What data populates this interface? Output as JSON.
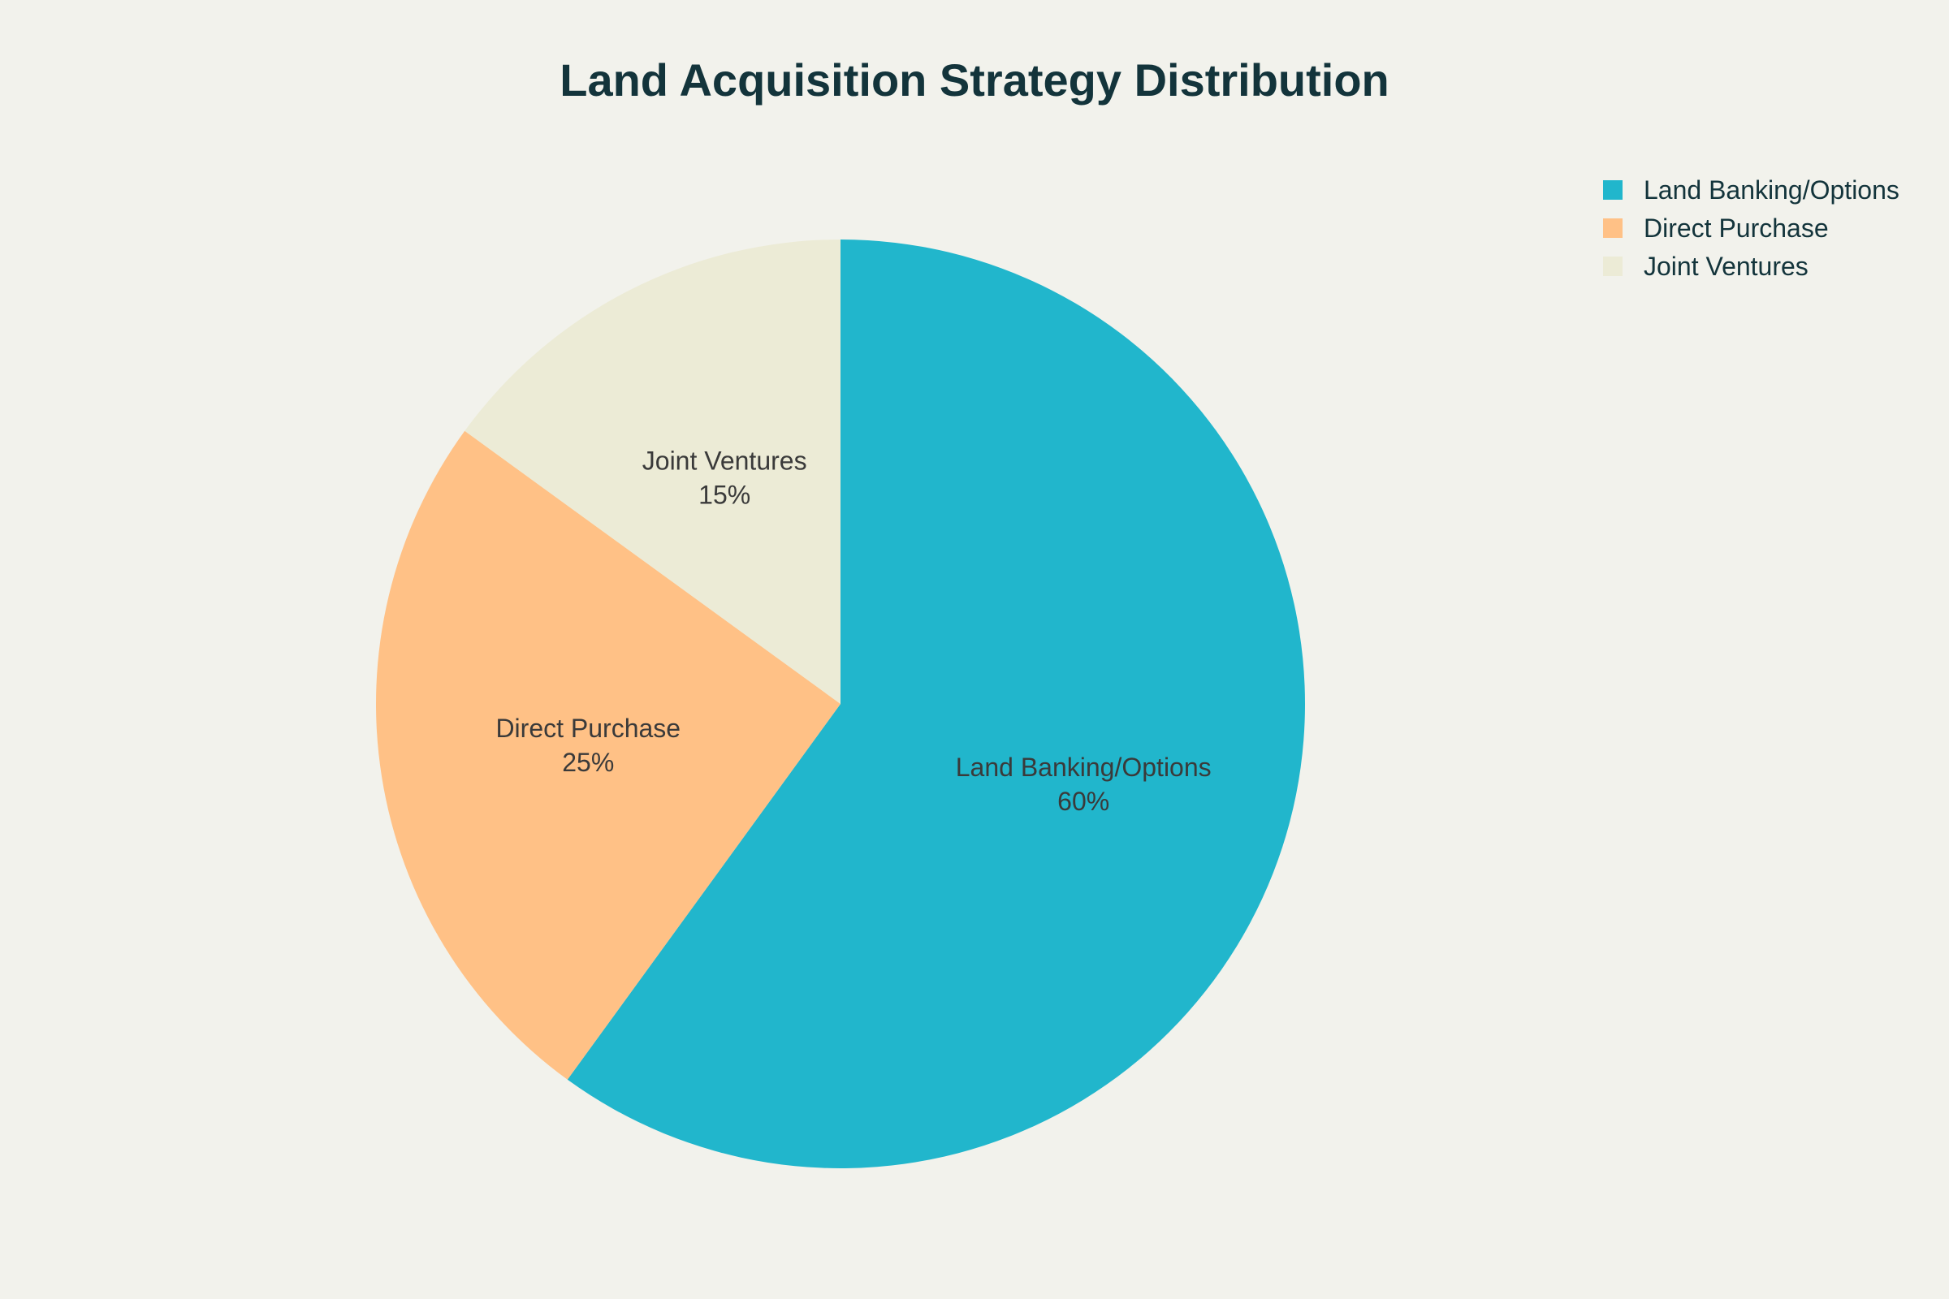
{
  "chart_data": {
    "type": "pie",
    "title": "Land Acquisition Strategy Distribution",
    "categories": [
      "Land Banking/Options",
      "Direct Purchase",
      "Joint Ventures"
    ],
    "values": [
      60,
      25,
      15
    ],
    "value_labels": [
      "60%",
      "25%",
      "15%"
    ],
    "colors": [
      "#21b6cc",
      "#ffc186",
      "#ecebd6"
    ],
    "legend_position": "top-right",
    "direction": "clockwise",
    "start_angle": "12 o'clock"
  }
}
